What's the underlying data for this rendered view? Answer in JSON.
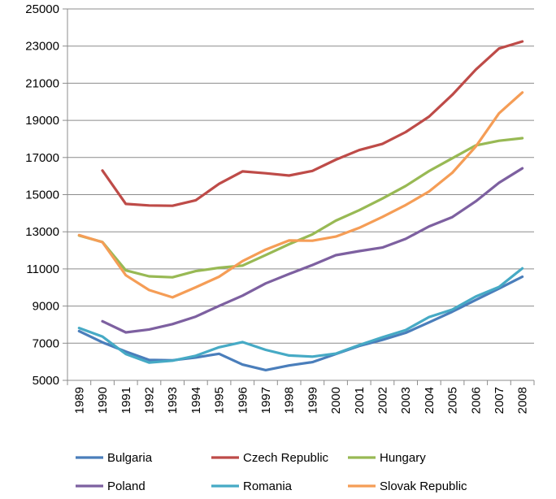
{
  "chart_data": {
    "type": "line",
    "title": "",
    "xlabel": "",
    "ylabel": "",
    "x": [
      "1989",
      "1990",
      "1991",
      "1992",
      "1993",
      "1994",
      "1995",
      "1996",
      "1997",
      "1998",
      "1999",
      "2000",
      "2001",
      "2002",
      "2003",
      "2004",
      "2005",
      "2006",
      "2007",
      "2008"
    ],
    "ylim": [
      5000,
      25000
    ],
    "yticks": [
      5000,
      7000,
      9000,
      11000,
      13000,
      15000,
      17000,
      19000,
      21000,
      23000,
      25000
    ],
    "grid": "horizontal",
    "legend_position": "bottom",
    "series": [
      {
        "name": "Bulgaria",
        "color": "#4a7ebb",
        "values": [
          7650,
          7050,
          6550,
          6100,
          6080,
          6230,
          6430,
          5850,
          5550,
          5800,
          5980,
          6420,
          6850,
          7180,
          7560,
          8120,
          8700,
          9330,
          9940,
          10580
        ]
      },
      {
        "name": "Czech Republic",
        "color": "#be4b48",
        "values": [
          null,
          16300,
          14500,
          14420,
          14400,
          14700,
          15580,
          16250,
          16150,
          16030,
          16280,
          16880,
          17400,
          17730,
          18370,
          19200,
          20380,
          21730,
          22870,
          23250
        ]
      },
      {
        "name": "Hungary",
        "color": "#98b954",
        "values": [
          12800,
          12450,
          10920,
          10600,
          10550,
          10880,
          11060,
          11180,
          11750,
          12330,
          12860,
          13600,
          14160,
          14790,
          15470,
          16270,
          16960,
          17650,
          17900,
          18040
        ]
      },
      {
        "name": "Poland",
        "color": "#7d60a0",
        "values": [
          null,
          8180,
          7580,
          7740,
          8030,
          8430,
          9010,
          9560,
          10220,
          10730,
          11210,
          11740,
          11960,
          12150,
          12620,
          13290,
          13790,
          14640,
          15640,
          16420
        ]
      },
      {
        "name": "Romania",
        "color": "#46aac5",
        "values": [
          7820,
          7360,
          6420,
          5960,
          6060,
          6320,
          6780,
          7060,
          6640,
          6340,
          6280,
          6440,
          6900,
          7320,
          7710,
          8410,
          8810,
          9510,
          10030,
          11030
        ]
      },
      {
        "name": "Slovak Republic",
        "color": "#f59d56",
        "values": [
          12820,
          12440,
          10660,
          9860,
          9470,
          10010,
          10580,
          11420,
          12040,
          12530,
          12520,
          12740,
          13210,
          13800,
          14440,
          15170,
          16180,
          17590,
          19380,
          20500
        ]
      }
    ]
  }
}
